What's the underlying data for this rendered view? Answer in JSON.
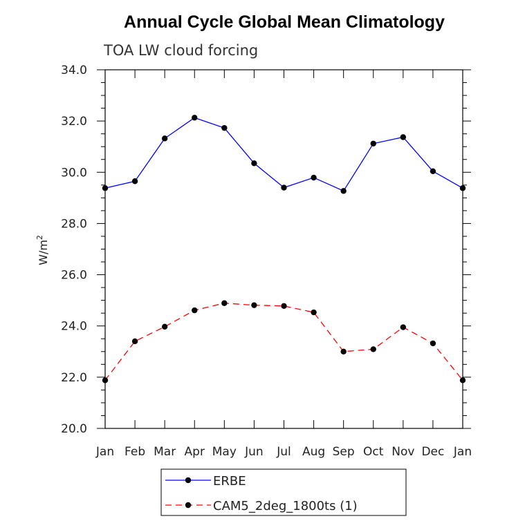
{
  "chart_data": {
    "type": "line",
    "title": "Annual Cycle Global Mean Climatology",
    "subtitle": "TOA LW cloud forcing",
    "xlabel": "",
    "ylabel": "W/m",
    "ylabel_superscript": "2",
    "categories": [
      "Jan",
      "Feb",
      "Mar",
      "Apr",
      "May",
      "Jun",
      "Jul",
      "Aug",
      "Sep",
      "Oct",
      "Nov",
      "Dec",
      "Jan"
    ],
    "ylim": [
      20.0,
      34.0
    ],
    "yticks": [
      "20.0",
      "22.0",
      "24.0",
      "26.0",
      "28.0",
      "30.0",
      "32.0",
      "34.0"
    ],
    "grid": false,
    "legend_position": "bottom-center",
    "series": [
      {
        "name": "ERBE",
        "color": "#0000ff",
        "dash": "solid",
        "values": [
          29.38,
          29.65,
          31.32,
          32.13,
          31.73,
          30.35,
          29.4,
          29.79,
          29.27,
          31.12,
          31.37,
          30.04,
          29.38
        ]
      },
      {
        "name": "CAM5_2deg_1800ts (1)",
        "color": "#ff0000",
        "dash": "dashed",
        "values": [
          21.88,
          23.4,
          23.97,
          24.61,
          24.89,
          24.81,
          24.78,
          24.53,
          23.0,
          23.09,
          23.95,
          23.32,
          21.88
        ]
      }
    ]
  }
}
